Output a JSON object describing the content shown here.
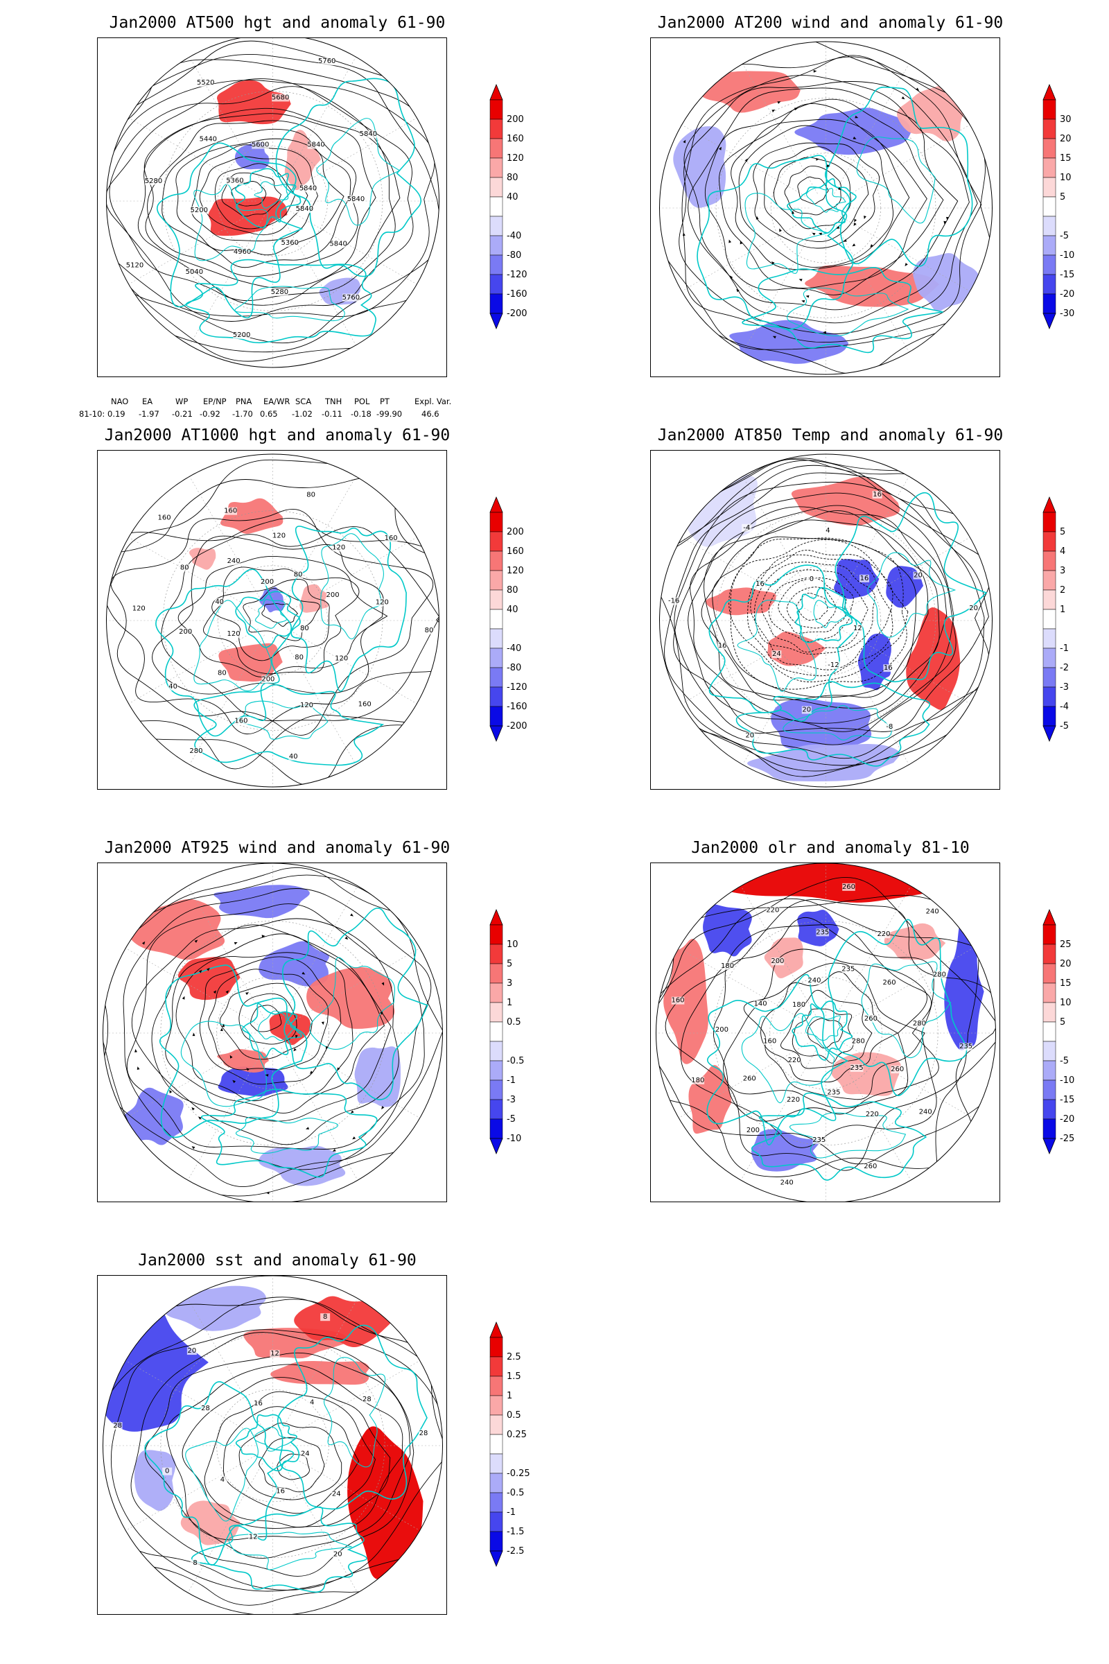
{
  "panels": [
    {
      "id": "p1",
      "title": "Jan2000 AT500 hgt and anomaly 61-90",
      "colorbar": [
        "200",
        "160",
        "120",
        "80",
        "40",
        "-40",
        "-80",
        "-120",
        "-160",
        "-200"
      ],
      "contour_labels": [
        "5840",
        "5840",
        "5760",
        "5360",
        "5280",
        "5200",
        "4960",
        "5040",
        "5120",
        "5200",
        "5280",
        "5360",
        "5440",
        "5520",
        "5600",
        "5680",
        "5760",
        "5840",
        "5840",
        "5840",
        "5840"
      ],
      "pattern": "hgt500"
    },
    {
      "id": "p2",
      "title": "Jan2000 AT200 wind and anomaly 61-90",
      "colorbar": [
        "30",
        "20",
        "15",
        "10",
        "5",
        "-5",
        "-10",
        "-15",
        "-20",
        "-30"
      ],
      "contour_labels": [],
      "pattern": "wind200"
    },
    {
      "id": "p3",
      "title": "Jan2000 AT1000 hgt and anomaly 61-90",
      "colorbar": [
        "200",
        "160",
        "120",
        "80",
        "40",
        "-40",
        "-80",
        "-120",
        "-160",
        "-200"
      ],
      "contour_labels": [
        "80",
        "120",
        "160",
        "80",
        "120",
        "40",
        "200",
        "160",
        "280",
        "80",
        "40",
        "120",
        "200",
        "120",
        "40",
        "80",
        "160",
        "240",
        "160",
        "200",
        "120",
        "80",
        "80",
        "120",
        "160",
        "200",
        "120",
        "80"
      ],
      "pattern": "hgt1000"
    },
    {
      "id": "p4",
      "title": "Jan2000 AT850 Temp and anomaly 61-90",
      "colorbar": [
        "5",
        "4",
        "3",
        "2",
        "1",
        "-1",
        "-2",
        "-3",
        "-4",
        "-5"
      ],
      "contour_labels": [
        "12",
        "16",
        "-8",
        "-12",
        "20",
        "20",
        "24",
        "16",
        "-16",
        "16",
        "-4",
        "0",
        "4",
        "16",
        "16",
        "20",
        "20"
      ],
      "pattern": "temp850"
    },
    {
      "id": "p5",
      "title": "Jan2000 AT925 wind and anomaly 61-90",
      "colorbar": [
        "10",
        "5",
        "3",
        "1",
        "0.5",
        "-0.5",
        "-1",
        "-3",
        "-5",
        "-10"
      ],
      "contour_labels": [],
      "pattern": "wind925"
    },
    {
      "id": "p6",
      "title": "Jan2000 olr and anomaly 81-10",
      "colorbar": [
        "25",
        "20",
        "15",
        "10",
        "5",
        "-5",
        "-10",
        "-15",
        "-20",
        "-25"
      ],
      "contour_labels": [
        "280",
        "260",
        "240",
        "235",
        "220",
        "260",
        "235",
        "235",
        "240",
        "220",
        "200",
        "220",
        "260",
        "180",
        "160",
        "200",
        "160",
        "140",
        "180",
        "180",
        "200",
        "220",
        "240",
        "235",
        "260",
        "235",
        "220",
        "240",
        "260",
        "280",
        "260",
        "280",
        "235"
      ],
      "pattern": "olr"
    },
    {
      "id": "p7",
      "title": "Jan2000 sst and anomaly 61-90",
      "colorbar": [
        "2.5",
        "1.5",
        "1",
        "0.5",
        "0.25",
        "-0.25",
        "-0.5",
        "-1",
        "-1.5",
        "-2.5"
      ],
      "contour_labels": [
        "24",
        "24",
        "20",
        "16",
        "12",
        "8",
        "4",
        "0",
        "28",
        "28",
        "20",
        "16",
        "12",
        "8",
        "4",
        "28",
        "28"
      ],
      "pattern": "sst"
    }
  ],
  "indices": {
    "headers": [
      "NAO",
      "EA",
      "WP",
      "EP/NP",
      "PNA",
      "EA/WR",
      "SCA",
      "TNH",
      "POL",
      "PT",
      "Expl. Var."
    ],
    "row_label": "81-10:",
    "values": [
      "0.19",
      "-1.97",
      "-0.21",
      "-0.92",
      "-1.70",
      "0.65",
      "-1.02",
      "-0.11",
      "-0.18",
      "-99.90",
      "46.6"
    ]
  },
  "colors": {
    "positive": [
      "#e80000",
      "#f23a3a",
      "#f77676",
      "#faa8a8",
      "#fcd8d8"
    ],
    "negative": [
      "#dcdcfc",
      "#ababf8",
      "#7a7af4",
      "#4646ee",
      "#0a0ae6"
    ],
    "coast": "#00c8c8",
    "contour": "#000000"
  }
}
